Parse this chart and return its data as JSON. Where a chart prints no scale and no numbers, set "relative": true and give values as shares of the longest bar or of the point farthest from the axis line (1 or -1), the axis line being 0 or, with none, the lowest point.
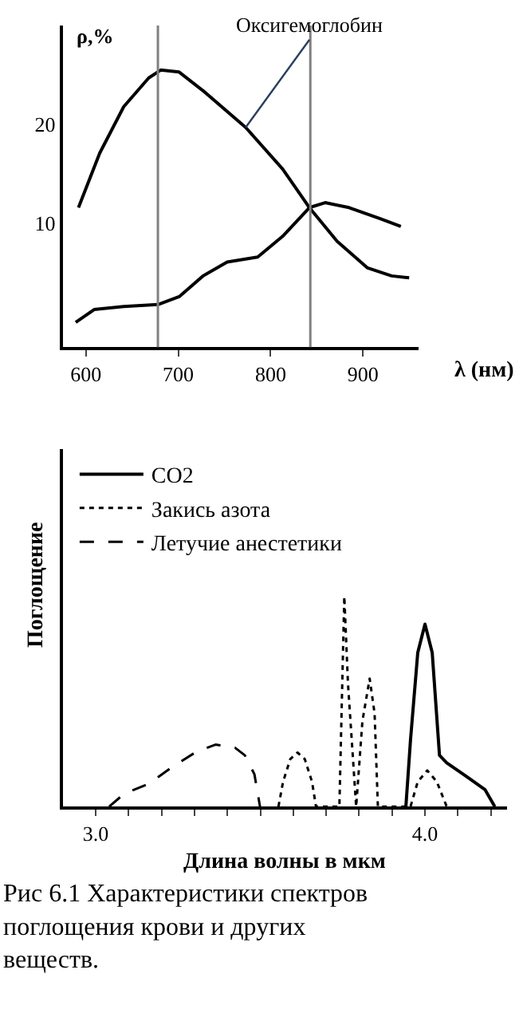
{
  "chart_data": [
    {
      "type": "line",
      "xlabel": "λ (нм)",
      "ylabel": "ρ,%",
      "xlim": [
        575,
        960
      ],
      "ylim": [
        -2.5,
        30
      ],
      "xticks": [
        600,
        700,
        800,
        900
      ],
      "yticks": [
        10,
        20
      ],
      "marker": "none",
      "line_style": "solid",
      "series": [
        {
          "color": "#000000",
          "x": [
            592,
            615,
            641,
            668,
            681,
            701,
            727,
            773,
            813,
            842,
            872,
            905,
            931,
            950
          ],
          "values": [
            11.6,
            17.1,
            21.8,
            24.7,
            25.5,
            25.3,
            23.4,
            19.7,
            15.5,
            11.6,
            8.2,
            5.5,
            4.7,
            4.5
          ]
        },
        {
          "color": "#000000",
          "x": [
            589,
            609,
            641,
            678,
            701,
            727,
            753,
            786,
            813,
            842,
            859,
            885,
            918,
            941
          ],
          "values": [
            0,
            1.3,
            1.6,
            1.8,
            2.6,
            4.7,
            6.1,
            6.6,
            8.7,
            11.6,
            12.1,
            11.6,
            10.5,
            9.7
          ]
        }
      ],
      "ref_lines": [
        {
          "axis": "x",
          "value": 678,
          "color": "#808080"
        },
        {
          "axis": "x",
          "value": 843,
          "color": "#808080"
        }
      ],
      "annotations": [
        {
          "text": "Оксигемоглобин",
          "x": 773,
          "y": 19.7
        }
      ]
    },
    {
      "type": "line",
      "relative": true,
      "xlabel": "Длина волны в мкм",
      "ylabel": "Поглощение",
      "xlim": [
        2.9,
        4.25
      ],
      "xticks": [
        {
          "value": 3.0,
          "label": "3.0"
        },
        {
          "value": 3.1,
          "label": null
        },
        {
          "value": 3.2,
          "label": null
        },
        {
          "value": 3.3,
          "label": null
        },
        {
          "value": 3.4,
          "label": null
        },
        {
          "value": 3.5,
          "label": null
        },
        {
          "value": 3.6,
          "label": null
        },
        {
          "value": 3.7,
          "label": null
        },
        {
          "value": 3.8,
          "label": null
        },
        {
          "value": 3.9,
          "label": null
        },
        {
          "value": 4.0,
          "label": "4.0"
        },
        {
          "value": 4.1,
          "label": null
        },
        {
          "value": 4.2,
          "label": null
        }
      ],
      "legend": "top left",
      "marker": "none",
      "series": [
        {
          "name": "CO2",
          "color": "#000000",
          "line_style": "solid",
          "x": [
            3.942,
            3.956,
            3.978,
            4.0,
            4.022,
            4.044,
            4.066,
            4.124,
            4.182,
            4.212
          ],
          "values": [
            0,
            0.316,
            0.732,
            0.868,
            0.732,
            0.244,
            0.208,
            0.145,
            0.081,
            0
          ]
        },
        {
          "name": "Закись азота",
          "color": "#000000",
          "line_style": "dotted",
          "x": [
            3.555,
            3.569,
            3.591,
            3.613,
            3.635,
            3.657,
            3.669,
            3.74,
            3.755,
            3.766,
            3.791,
            3.81,
            3.832,
            3.847,
            3.857,
            3.956,
            3.978,
            4.007,
            4.036,
            4.066
          ],
          "values": [
            0,
            0.118,
            0.226,
            0.257,
            0.226,
            0.118,
            0,
            0,
            1.0,
            0.588,
            0,
            0.407,
            0.609,
            0.443,
            0,
            0,
            0.118,
            0.172,
            0.118,
            0
          ]
        },
        {
          "name": "Летучие анестетики",
          "color": "#000000",
          "line_style": "dashed",
          "x": [
            3.041,
            3.088,
            3.161,
            3.234,
            3.307,
            3.365,
            3.423,
            3.453,
            3.482,
            3.499
          ],
          "values": [
            0,
            0.063,
            0.108,
            0.19,
            0.262,
            0.295,
            0.28,
            0.244,
            0.154,
            0
          ]
        }
      ],
      "annotations": [
        "Рис 6.1 Характеристики спектров поглощения крови и других веществ."
      ]
    }
  ]
}
